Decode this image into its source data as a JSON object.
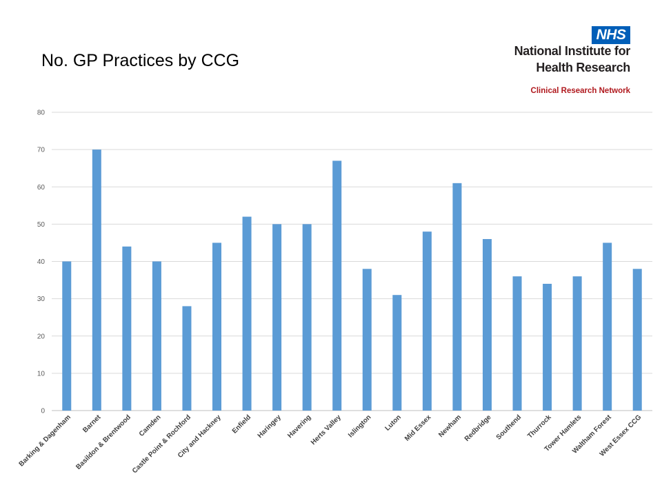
{
  "header": {
    "title": "No. GP Practices by CCG"
  },
  "logo": {
    "badge": "NHS",
    "line1": "National Institute for",
    "line2": "Health Research",
    "line3": "Clinical Research Network",
    "badge_color": "#005eb8",
    "network_color": "#b0191e"
  },
  "chart_data": {
    "type": "bar",
    "title": "No. GP Practices by CCG",
    "xlabel": "",
    "ylabel": "",
    "ylim": [
      0,
      80
    ],
    "yticks": [
      0,
      10,
      20,
      30,
      40,
      50,
      60,
      70,
      80
    ],
    "grid": true,
    "bar_color": "#5b9bd5",
    "categories": [
      "Barking & Dagenham",
      "Barnet",
      "Basildon & Brentwood",
      "Camden",
      "Castle Point & Rochford",
      "City and Hackney",
      "Enfield",
      "Haringey",
      "Havering",
      "Herts Valley",
      "Islington",
      "Luton",
      "Mid Essex",
      "Newham",
      "Redbridge",
      "Southend",
      "Thurrock",
      "Tower Hamlets",
      "Waltham Forest",
      "West Essex CCG"
    ],
    "values": [
      40,
      70,
      44,
      40,
      28,
      45,
      52,
      50,
      50,
      67,
      38,
      31,
      48,
      61,
      46,
      36,
      34,
      36,
      45,
      38
    ]
  }
}
